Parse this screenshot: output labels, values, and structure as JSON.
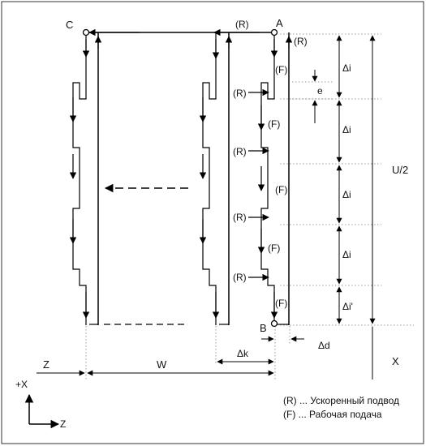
{
  "points": {
    "c": "C",
    "a": "A",
    "b": "B"
  },
  "motion": {
    "r": "(R)",
    "f": "(F)"
  },
  "dims": {
    "delta_i": "Δi",
    "delta_i_prime": "Δi'",
    "e": "e",
    "u_half": "U/2",
    "delta_d": "Δd",
    "delta_k": "Δk",
    "w": "W",
    "z": "Z",
    "x": "X"
  },
  "axes": {
    "plus_x": "+X",
    "z": "Z"
  },
  "legend": [
    "(R) ... Ускоренный подвод",
    "(F) ... Рабочая подача"
  ],
  "colors": {
    "line": "#000000",
    "dotted": "#9a9a9a",
    "border": "#333333"
  }
}
